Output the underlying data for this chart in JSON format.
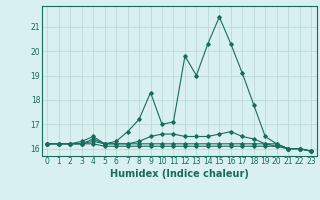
{
  "x": [
    0,
    1,
    2,
    3,
    4,
    5,
    6,
    7,
    8,
    9,
    10,
    11,
    12,
    13,
    14,
    15,
    16,
    17,
    18,
    19,
    20,
    21,
    22,
    23
  ],
  "lines": [
    [
      16.2,
      16.2,
      16.2,
      16.3,
      16.5,
      16.2,
      16.3,
      16.7,
      17.2,
      18.3,
      17.0,
      17.1,
      19.8,
      19.0,
      20.3,
      21.4,
      20.3,
      19.1,
      17.8,
      16.5,
      16.2,
      16.0,
      16.0,
      15.9
    ],
    [
      16.2,
      16.2,
      16.2,
      16.2,
      16.4,
      16.2,
      16.2,
      16.2,
      16.3,
      16.5,
      16.6,
      16.6,
      16.5,
      16.5,
      16.5,
      16.6,
      16.7,
      16.5,
      16.4,
      16.2,
      16.2,
      16.0,
      16.0,
      15.9
    ],
    [
      16.2,
      16.2,
      16.2,
      16.2,
      16.3,
      16.2,
      16.2,
      16.2,
      16.2,
      16.2,
      16.2,
      16.2,
      16.2,
      16.2,
      16.2,
      16.2,
      16.2,
      16.2,
      16.2,
      16.2,
      16.1,
      16.0,
      16.0,
      15.9
    ],
    [
      16.2,
      16.2,
      16.2,
      16.2,
      16.2,
      16.1,
      16.1,
      16.1,
      16.1,
      16.1,
      16.1,
      16.1,
      16.1,
      16.1,
      16.1,
      16.1,
      16.1,
      16.1,
      16.1,
      16.1,
      16.1,
      16.0,
      16.0,
      15.9
    ]
  ],
  "line_color": "#1a6b5e",
  "marker": "D",
  "marker_size": 1.8,
  "bg_color": "#d8f0f0",
  "grid_color": "#b8d4d4",
  "xlabel": "Humidex (Indice chaleur)",
  "ylim": [
    15.7,
    21.85
  ],
  "xlim": [
    -0.5,
    23.5
  ],
  "yticks": [
    16,
    17,
    18,
    19,
    20,
    21
  ],
  "xticks": [
    0,
    1,
    2,
    3,
    4,
    5,
    6,
    7,
    8,
    9,
    10,
    11,
    12,
    13,
    14,
    15,
    16,
    17,
    18,
    19,
    20,
    21,
    22,
    23
  ],
  "xtick_labels": [
    "0",
    "1",
    "2",
    "3",
    "4",
    "5",
    "6",
    "7",
    "8",
    "9",
    "10",
    "11",
    "12",
    "13",
    "14",
    "15",
    "16",
    "17",
    "18",
    "19",
    "20",
    "21",
    "22",
    "23"
  ],
  "tick_fontsize": 5.5,
  "xlabel_fontsize": 7.0,
  "line_width": 0.8
}
